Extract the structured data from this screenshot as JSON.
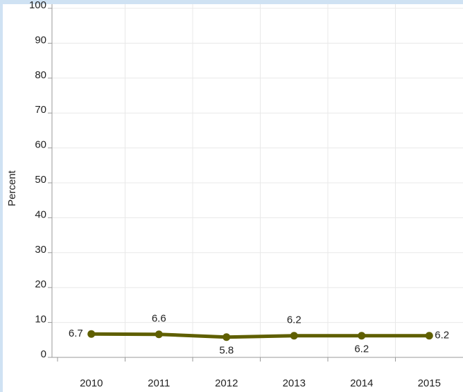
{
  "chart_data": {
    "type": "line",
    "y_label": "Percent",
    "categories": [
      "2010",
      "2011",
      "2012",
      "2013",
      "2014",
      "2015"
    ],
    "series": [
      {
        "name": "Percent",
        "color": "#5f5f00",
        "values": [
          6.7,
          6.6,
          5.8,
          6.2,
          6.2,
          6.2
        ]
      }
    ],
    "ylim": [
      0,
      100
    ],
    "yticks": [
      0,
      10,
      20,
      30,
      40,
      50,
      60,
      70,
      80,
      90,
      100
    ],
    "grid": true
  }
}
